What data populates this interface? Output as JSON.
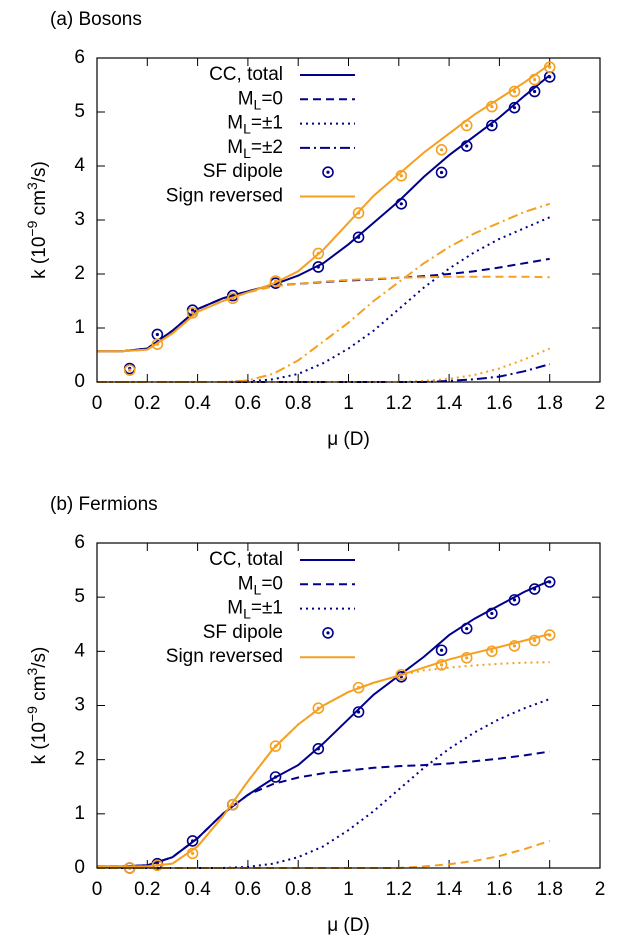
{
  "chart_data": [
    {
      "type": "line",
      "title": "(a) Bosons",
      "xlabel": "μ (D)",
      "ylabel": [
        "k (10",
        "−9",
        " cm",
        "3",
        "/s)"
      ],
      "xlim": [
        0,
        2
      ],
      "ylim": [
        0,
        6
      ],
      "xticks": [
        0,
        0.2,
        0.4,
        0.6,
        0.8,
        1,
        1.2,
        1.4,
        1.6,
        1.8,
        2
      ],
      "yticks": [
        0,
        1,
        2,
        3,
        4,
        5,
        6
      ],
      "legend": "upper-left",
      "series": [
        {
          "name": "CC, total",
          "color": "#00008b",
          "style": "solid",
          "x": [
            0,
            0.1,
            0.2,
            0.3,
            0.4,
            0.5,
            0.6,
            0.7,
            0.8,
            0.9,
            1,
            1.1,
            1.2,
            1.3,
            1.4,
            1.5,
            1.6,
            1.7,
            1.8
          ],
          "values": [
            0.57,
            0.57,
            0.62,
            0.95,
            1.35,
            1.55,
            1.68,
            1.8,
            1.97,
            2.2,
            2.55,
            2.95,
            3.35,
            3.8,
            4.2,
            4.55,
            4.9,
            5.3,
            5.68
          ]
        },
        {
          "name": [
            "M",
            "L",
            "=0"
          ],
          "color": "#00008b",
          "style": "dashed",
          "x": [
            0,
            0.1,
            0.2,
            0.3,
            0.4,
            0.5,
            0.6,
            0.7,
            0.8,
            0.9,
            1,
            1.1,
            1.2,
            1.3,
            1.4,
            1.5,
            1.6,
            1.7,
            1.8
          ],
          "values": [
            0.57,
            0.57,
            0.62,
            0.95,
            1.35,
            1.55,
            1.68,
            1.78,
            1.82,
            1.85,
            1.88,
            1.9,
            1.93,
            1.96,
            2.0,
            2.05,
            2.12,
            2.2,
            2.28
          ]
        },
        {
          "name": [
            "M",
            "L",
            "=±1"
          ],
          "color": "#00008b",
          "style": "dotted",
          "x": [
            0,
            0.1,
            0.2,
            0.3,
            0.4,
            0.5,
            0.6,
            0.7,
            0.8,
            0.9,
            1,
            1.1,
            1.2,
            1.3,
            1.4,
            1.5,
            1.6,
            1.7,
            1.8
          ],
          "values": [
            0,
            0,
            0,
            0,
            0,
            0,
            0.01,
            0.05,
            0.15,
            0.35,
            0.62,
            0.95,
            1.35,
            1.75,
            2.1,
            2.4,
            2.65,
            2.85,
            3.05
          ]
        },
        {
          "name": [
            "M",
            "L",
            "=±2"
          ],
          "color": "#00008b",
          "style": "dashdot",
          "x": [
            0,
            0.1,
            0.2,
            0.3,
            0.4,
            0.5,
            0.6,
            0.7,
            0.8,
            0.9,
            1,
            1.1,
            1.2,
            1.3,
            1.4,
            1.5,
            1.6,
            1.7,
            1.8
          ],
          "values": [
            0,
            0,
            0,
            0,
            0,
            0,
            0,
            0,
            0,
            0,
            0,
            0,
            0,
            0,
            0.02,
            0.05,
            0.1,
            0.2,
            0.33
          ]
        },
        {
          "name": "SF dipole",
          "color": "#00008b",
          "style": "marker",
          "x": [
            0.13,
            0.24,
            0.38,
            0.54,
            0.71,
            0.88,
            1.04,
            1.21,
            1.37,
            1.47,
            1.57,
            1.66,
            1.74,
            1.8
          ],
          "values": [
            0.25,
            0.88,
            1.33,
            1.6,
            1.83,
            2.13,
            2.68,
            3.3,
            3.88,
            4.37,
            4.75,
            5.08,
            5.38,
            5.65
          ]
        },
        {
          "name": "Sign reversed",
          "color": "#f5a020",
          "style": "solid",
          "x": [
            0,
            0.1,
            0.2,
            0.3,
            0.4,
            0.5,
            0.6,
            0.7,
            0.8,
            0.9,
            1,
            1.1,
            1.2,
            1.3,
            1.4,
            1.5,
            1.6,
            1.7,
            1.8
          ],
          "values": [
            0.57,
            0.57,
            0.6,
            0.9,
            1.3,
            1.5,
            1.66,
            1.82,
            2.05,
            2.45,
            2.95,
            3.45,
            3.85,
            4.25,
            4.6,
            4.95,
            5.25,
            5.55,
            5.88
          ]
        },
        {
          "color": "#f5a020",
          "style": "dashed",
          "x": [
            0,
            0.1,
            0.2,
            0.3,
            0.4,
            0.5,
            0.6,
            0.7,
            0.8,
            0.9,
            1,
            1.1,
            1.2,
            1.3,
            1.4,
            1.5,
            1.6,
            1.7,
            1.8
          ],
          "values": [
            0.57,
            0.57,
            0.6,
            0.9,
            1.3,
            1.5,
            1.66,
            1.77,
            1.82,
            1.86,
            1.89,
            1.91,
            1.93,
            1.94,
            1.95,
            1.95,
            1.95,
            1.95,
            1.94
          ]
        },
        {
          "color": "#f5a020",
          "style": "dotted",
          "x": [
            0,
            0.1,
            0.2,
            0.3,
            0.4,
            0.5,
            0.6,
            0.7,
            0.8,
            0.9,
            1,
            1.1,
            1.2,
            1.3,
            1.4,
            1.5,
            1.6,
            1.7,
            1.8
          ],
          "values": [
            0,
            0,
            0,
            0,
            0,
            0,
            0,
            0,
            0,
            0,
            0,
            0,
            0,
            0.02,
            0.06,
            0.13,
            0.25,
            0.42,
            0.62
          ]
        },
        {
          "color": "#f5a020",
          "style": "dashdot",
          "x": [
            0,
            0.1,
            0.2,
            0.3,
            0.4,
            0.5,
            0.6,
            0.7,
            0.8,
            0.9,
            1,
            1.1,
            1.2,
            1.3,
            1.4,
            1.5,
            1.6,
            1.7,
            1.8
          ],
          "values": [
            0,
            0,
            0,
            0,
            0,
            0,
            0.03,
            0.15,
            0.4,
            0.75,
            1.1,
            1.5,
            1.85,
            2.2,
            2.5,
            2.75,
            2.95,
            3.15,
            3.3
          ]
        },
        {
          "color": "#f5a020",
          "style": "marker",
          "x": [
            0.13,
            0.24,
            0.38,
            0.54,
            0.71,
            0.88,
            1.04,
            1.21,
            1.37,
            1.47,
            1.57,
            1.66,
            1.74,
            1.8
          ],
          "values": [
            0.22,
            0.7,
            1.28,
            1.55,
            1.87,
            2.38,
            3.13,
            3.82,
            4.3,
            4.75,
            5.1,
            5.38,
            5.6,
            5.83
          ]
        }
      ]
    },
    {
      "type": "line",
      "title": "(b) Fermions",
      "xlabel": "μ (D)",
      "ylabel": [
        "k (10",
        "−9",
        " cm",
        "3",
        "/s)"
      ],
      "xlim": [
        0,
        2
      ],
      "ylim": [
        0,
        6
      ],
      "xticks": [
        0,
        0.2,
        0.4,
        0.6,
        0.8,
        1,
        1.2,
        1.4,
        1.6,
        1.8,
        2
      ],
      "yticks": [
        0,
        1,
        2,
        3,
        4,
        5,
        6
      ],
      "legend": "upper-left",
      "series": [
        {
          "name": "CC, total",
          "color": "#00008b",
          "style": "solid",
          "x": [
            0,
            0.1,
            0.2,
            0.3,
            0.4,
            0.5,
            0.6,
            0.7,
            0.8,
            0.9,
            1,
            1.1,
            1.2,
            1.3,
            1.4,
            1.5,
            1.6,
            1.7,
            1.8
          ],
          "values": [
            0.03,
            0.03,
            0.05,
            0.2,
            0.55,
            1.0,
            1.35,
            1.65,
            1.9,
            2.3,
            2.75,
            3.2,
            3.55,
            3.9,
            4.3,
            4.6,
            4.85,
            5.1,
            5.3
          ]
        },
        {
          "name": [
            "M",
            "L",
            "=0"
          ],
          "color": "#00008b",
          "style": "dashed",
          "x": [
            0,
            0.1,
            0.2,
            0.3,
            0.4,
            0.5,
            0.6,
            0.7,
            0.8,
            0.9,
            1,
            1.1,
            1.2,
            1.3,
            1.4,
            1.5,
            1.6,
            1.7,
            1.8
          ],
          "values": [
            0.03,
            0.03,
            0.05,
            0.2,
            0.55,
            1.0,
            1.35,
            1.55,
            1.67,
            1.75,
            1.8,
            1.85,
            1.88,
            1.9,
            1.93,
            1.97,
            2.02,
            2.08,
            2.15
          ]
        },
        {
          "name": [
            "M",
            "L",
            "=±1"
          ],
          "color": "#00008b",
          "style": "dotted",
          "x": [
            0,
            0.1,
            0.2,
            0.3,
            0.4,
            0.5,
            0.6,
            0.7,
            0.8,
            0.9,
            1,
            1.1,
            1.2,
            1.3,
            1.4,
            1.5,
            1.6,
            1.7,
            1.8
          ],
          "values": [
            0,
            0,
            0,
            0,
            0,
            0,
            0.02,
            0.08,
            0.2,
            0.4,
            0.7,
            1.05,
            1.45,
            1.85,
            2.2,
            2.5,
            2.75,
            2.95,
            3.12
          ]
        },
        {
          "name": "SF dipole",
          "color": "#00008b",
          "style": "marker",
          "x": [
            0.13,
            0.24,
            0.38,
            0.54,
            0.71,
            0.88,
            1.04,
            1.21,
            1.37,
            1.47,
            1.57,
            1.66,
            1.74,
            1.8
          ],
          "values": [
            0,
            0.08,
            0.5,
            1.17,
            1.68,
            2.2,
            2.88,
            3.53,
            4.02,
            4.42,
            4.7,
            4.95,
            5.15,
            5.28
          ]
        },
        {
          "name": "Sign reversed",
          "color": "#f5a020",
          "style": "solid",
          "x": [
            0,
            0.1,
            0.2,
            0.3,
            0.4,
            0.5,
            0.6,
            0.7,
            0.8,
            0.9,
            1,
            1.1,
            1.2,
            1.3,
            1.4,
            1.5,
            1.6,
            1.7,
            1.8
          ],
          "values": [
            0.03,
            0.03,
            0.03,
            0.08,
            0.4,
            0.95,
            1.6,
            2.2,
            2.65,
            3.0,
            3.25,
            3.42,
            3.55,
            3.7,
            3.85,
            3.97,
            4.08,
            4.2,
            4.32
          ]
        },
        {
          "color": "#f5a020",
          "style": "dotted",
          "x": [
            0,
            0.1,
            0.2,
            0.3,
            0.4,
            0.5,
            0.6,
            0.7,
            0.8,
            0.9,
            1,
            1.1,
            1.2,
            1.3,
            1.4,
            1.5,
            1.6,
            1.7,
            1.8
          ],
          "values": [
            0.03,
            0.03,
            0.03,
            0.08,
            0.4,
            0.95,
            1.6,
            2.2,
            2.65,
            3.0,
            3.25,
            3.42,
            3.55,
            3.65,
            3.7,
            3.74,
            3.77,
            3.79,
            3.8
          ]
        },
        {
          "color": "#f5a020",
          "style": "dashed",
          "x": [
            0,
            0.1,
            0.2,
            0.3,
            0.4,
            0.5,
            0.6,
            0.7,
            0.8,
            0.9,
            1,
            1.1,
            1.2,
            1.3,
            1.4,
            1.5,
            1.6,
            1.7,
            1.8
          ],
          "values": [
            0,
            0,
            0,
            0,
            0,
            0,
            0,
            0,
            0,
            0,
            0,
            0,
            0,
            0.03,
            0.07,
            0.13,
            0.22,
            0.35,
            0.5
          ]
        },
        {
          "color": "#f5a020",
          "style": "marker",
          "x": [
            0.13,
            0.24,
            0.38,
            0.54,
            0.71,
            0.88,
            1.04,
            1.21,
            1.37,
            1.47,
            1.57,
            1.66,
            1.74,
            1.8
          ],
          "values": [
            0,
            0.05,
            0.27,
            1.17,
            2.25,
            2.95,
            3.33,
            3.57,
            3.75,
            3.88,
            4.0,
            4.1,
            4.2,
            4.3
          ]
        }
      ]
    }
  ]
}
